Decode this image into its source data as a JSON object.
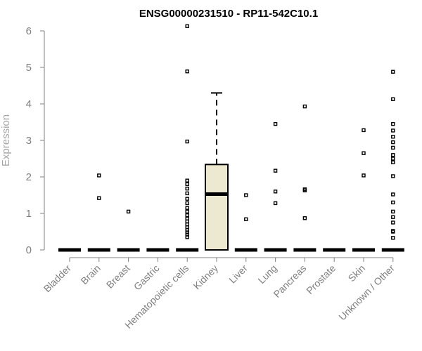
{
  "chart_data": {
    "type": "box",
    "title": "ENSG00000231510 - RP11-542C10.1",
    "xlabel": "",
    "ylabel": "Expression",
    "ylim": [
      0,
      6
    ],
    "yticks": [
      0,
      1,
      2,
      3,
      4,
      5,
      6
    ],
    "box_fill": "#ede8d0",
    "outlier_color": "#000000",
    "categories": [
      "Bladder",
      "Brain",
      "Breast",
      "Gastric",
      "Hematopoietic cells",
      "Kidney",
      "Liver",
      "Lung",
      "Pancreas",
      "Prostate",
      "Skin",
      "Unknown / Other"
    ],
    "boxes": [
      {
        "q1": 0,
        "median": 0,
        "q3": 0,
        "whisker_low": 0,
        "whisker_high": 0,
        "outliers": []
      },
      {
        "q1": 0,
        "median": 0,
        "q3": 0,
        "whisker_low": 0,
        "whisker_high": 0,
        "outliers": [
          1.42,
          2.04
        ]
      },
      {
        "q1": 0,
        "median": 0,
        "q3": 0,
        "whisker_low": 0,
        "whisker_high": 0,
        "outliers": [
          1.05
        ]
      },
      {
        "q1": 0,
        "median": 0,
        "q3": 0,
        "whisker_low": 0,
        "whisker_high": 0,
        "outliers": []
      },
      {
        "q1": 0,
        "median": 0,
        "q3": 0,
        "whisker_low": 0,
        "whisker_high": 0,
        "outliers": [
          0.35,
          0.42,
          0.48,
          0.55,
          0.62,
          0.7,
          0.78,
          0.86,
          0.95,
          1.05,
          1.15,
          1.28,
          1.4,
          1.55,
          1.68,
          1.8,
          1.9,
          2.97,
          4.89,
          6.13
        ]
      },
      {
        "q1": 0,
        "median": 1.53,
        "q3": 2.34,
        "whisker_low": 0,
        "whisker_high": 4.3,
        "outliers": []
      },
      {
        "q1": 0,
        "median": 0,
        "q3": 0,
        "whisker_low": 0,
        "whisker_high": 0,
        "outliers": [
          0.84,
          1.5
        ]
      },
      {
        "q1": 0,
        "median": 0,
        "q3": 0,
        "whisker_low": 0,
        "whisker_high": 0,
        "outliers": [
          1.28,
          1.6,
          2.17,
          3.45
        ]
      },
      {
        "q1": 0,
        "median": 0,
        "q3": 0,
        "whisker_low": 0,
        "whisker_high": 0,
        "outliers": [
          0.87,
          1.63,
          1.66,
          3.93
        ]
      },
      {
        "q1": 0,
        "median": 0,
        "q3": 0,
        "whisker_low": 0,
        "whisker_high": 0,
        "outliers": []
      },
      {
        "q1": 0,
        "median": 0,
        "q3": 0,
        "whisker_low": 0,
        "whisker_high": 0,
        "outliers": [
          2.04,
          2.65,
          3.28
        ]
      },
      {
        "q1": 0,
        "median": 0,
        "q3": 0,
        "whisker_low": 0,
        "whisker_high": 0,
        "outliers": [
          0.33,
          0.5,
          0.52,
          0.75,
          0.9,
          1.05,
          1.3,
          1.52,
          2.02,
          2.4,
          2.5,
          2.6,
          2.8,
          2.95,
          3.1,
          3.27,
          3.45,
          4.13,
          4.88
        ]
      }
    ]
  }
}
